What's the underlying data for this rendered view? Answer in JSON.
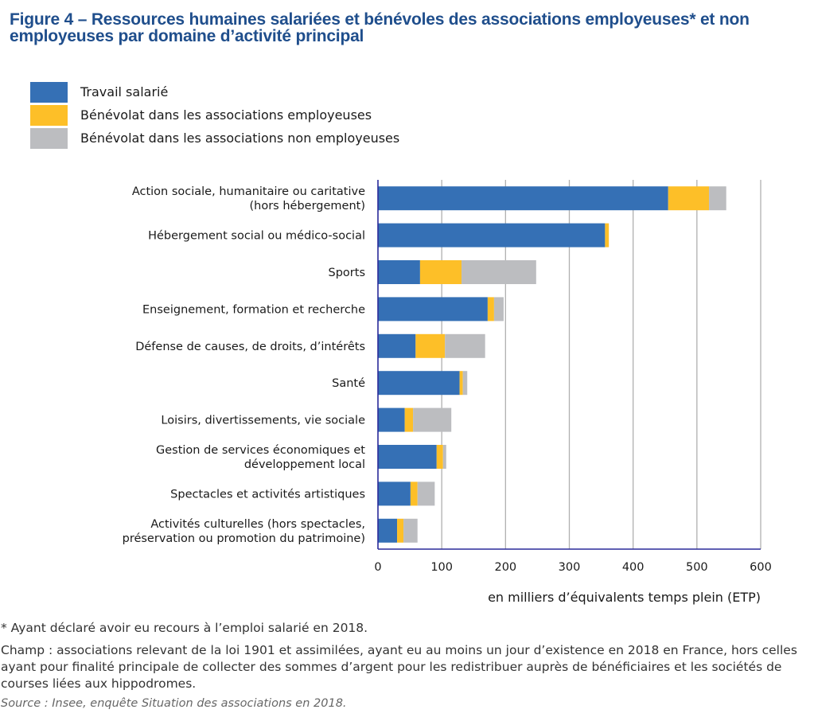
{
  "title": "Figure 4 – Ressources humaines salariées et bénévoles des associations employeuses* et non employeuses par domaine d’activité principal",
  "notes": {
    "star": "* Ayant déclaré avoir eu recours à l’emploi salarié en 2018.",
    "champ": "Champ : associations relevant de la loi 1901 et assimilées, ayant eu au moins un jour d’existence en 2018 en France, hors celles ayant pour finalité principale de collecter des sommes d’argent pour les redistribuer auprès de bénéficiaires et les sociétés de courses liées aux hippodromes.",
    "source": "Source : Insee, enquête Situation des associations en 2018."
  },
  "chart_data": {
    "type": "bar",
    "orientation": "horizontal",
    "stacked": true,
    "title": "Figure 4 – Ressources humaines salariées et bénévoles des associations employeuses* et non employeuses par domaine d’activité principal",
    "xlabel": "en milliers d’équivalents temps plein (ETP)",
    "ylabel": "",
    "xlim": [
      0,
      600
    ],
    "xticks": [
      0,
      100,
      200,
      300,
      400,
      500,
      600
    ],
    "grid": true,
    "legend_position": "top-left",
    "categories": [
      [
        "Action sociale, humanitaire ou caritative",
        "(hors hébergement)"
      ],
      [
        "Hébergement social ou médico-social"
      ],
      [
        "Sports"
      ],
      [
        "Enseignement, formation et recherche"
      ],
      [
        "Défense de causes, de droits, d’intérêts"
      ],
      [
        "Santé"
      ],
      [
        "Loisirs, divertissements, vie sociale"
      ],
      [
        "Gestion de services économiques et",
        "développement local"
      ],
      [
        "Spectacles et activités artistiques"
      ],
      [
        "Activités culturelles (hors spectacles,",
        "préservation ou promotion du patrimoine)"
      ]
    ],
    "series": [
      {
        "name": "Travail salarié",
        "color": "#3570b5",
        "values": [
          455,
          356,
          66,
          172,
          59,
          128,
          42,
          92,
          51,
          30
        ]
      },
      {
        "name": "Bénévolat dans les associations employeuses",
        "color": "#fdbf28",
        "values": [
          64,
          6,
          65,
          10,
          46,
          5,
          13,
          10,
          11,
          10
        ]
      },
      {
        "name": "Bénévolat dans les associations non employeuses",
        "color": "#bcbdc0",
        "values": [
          27,
          0,
          117,
          15,
          63,
          7,
          60,
          5,
          27,
          22
        ]
      }
    ]
  }
}
